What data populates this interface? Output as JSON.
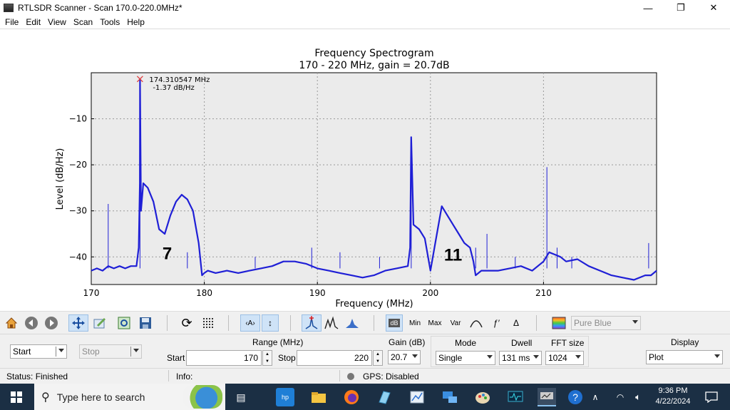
{
  "window": {
    "title": "RTLSDR Scanner - Scan 170.0-220.0MHz*",
    "controls": [
      "—",
      "❐",
      "✕"
    ]
  },
  "menu": [
    "File",
    "Edit",
    "View",
    "Scan",
    "Tools",
    "Help"
  ],
  "chart_data": {
    "type": "line",
    "title": "Frequency Spectrogram",
    "subtitle": "170 - 220 MHz, gain = 20.7dB",
    "xlabel": "Frequency (MHz)",
    "ylabel": "Level (dB/Hz)",
    "xlim": [
      170,
      220
    ],
    "ylim": [
      -46,
      0
    ],
    "xticks": [
      170,
      180,
      190,
      200,
      210
    ],
    "yticks": [
      -10,
      -20,
      -30,
      -40
    ],
    "grid": true,
    "color": "#1f1fd6",
    "series": [
      {
        "x": [
          170,
          170.5,
          171,
          171.5,
          172,
          172.5,
          173,
          173.5,
          174,
          174.2,
          174.3,
          174.31,
          174.4,
          174.6,
          175,
          175.5,
          176,
          176.5,
          177,
          177.5,
          178,
          178.5,
          179,
          179.5,
          179.8,
          180,
          180.3,
          181,
          182,
          183,
          184,
          185,
          186,
          187,
          188,
          189,
          190,
          191,
          192,
          193,
          194,
          195,
          196,
          197,
          198,
          198.2,
          198.3,
          198.5,
          199,
          199.5,
          200,
          200.5,
          201,
          201.5,
          202,
          202.5,
          203,
          203.5,
          203.8,
          204,
          204.5,
          205,
          206,
          207,
          208,
          209,
          210,
          210.5,
          211,
          211.5,
          212,
          213,
          214,
          215,
          216,
          217,
          218,
          219,
          219.5,
          220
        ],
        "y": [
          -43,
          -42.5,
          -43,
          -42,
          -42.5,
          -42,
          -42.5,
          -42,
          -42,
          -38,
          -24,
          -1.37,
          -30,
          -24,
          -25,
          -28,
          -34,
          -35,
          -31,
          -28,
          -26.5,
          -27.5,
          -30,
          -37,
          -44,
          -43.5,
          -43,
          -43.5,
          -43,
          -43.5,
          -43,
          -42.5,
          -42,
          -41,
          -41,
          -41.5,
          -42.5,
          -43,
          -43.5,
          -44,
          -44.5,
          -44,
          -43,
          -42.5,
          -42,
          -38,
          -14,
          -33,
          -34,
          -36,
          -43,
          -36,
          -29,
          -31,
          -33,
          -35,
          -37,
          -38,
          -41,
          -44,
          -43,
          -43,
          -43,
          -42.5,
          -42,
          -43,
          -41,
          -39,
          -39.5,
          -40,
          -41,
          -40.5,
          -42,
          -43,
          -44,
          -44.5,
          -45,
          -44,
          -44,
          -43
        ],
        "spikes": [
          [
            171.5,
            -28.5
          ],
          [
            174.31,
            -1.37
          ],
          [
            178.5,
            -39
          ],
          [
            184.5,
            -40
          ],
          [
            189.5,
            -38
          ],
          [
            192,
            -39
          ],
          [
            195.5,
            -40
          ],
          [
            198.3,
            -14
          ],
          [
            204,
            -38
          ],
          [
            205,
            -35
          ],
          [
            207.5,
            -40
          ],
          [
            210.3,
            -20.5
          ],
          [
            211.2,
            -38
          ],
          [
            212.5,
            -40
          ],
          [
            219.3,
            -37
          ]
        ]
      }
    ],
    "peak_label": {
      "freq": "174.310547 MHz",
      "level": "-1.37 dB/Hz",
      "x": 174.31,
      "y": -1.37
    },
    "annotations": [
      {
        "text": "7",
        "x": 176.3,
        "y": -40.5
      },
      {
        "text": "11",
        "x": 201.2,
        "y": -40.8
      }
    ]
  },
  "toolbar": {
    "color_map": "Pure Blue",
    "buttons": [
      "home-icon",
      "back-icon",
      "forward-icon",
      "pan-icon",
      "configure-icon",
      "zoom-fit-icon",
      "save-icon",
      "refresh-icon",
      "grid-icon",
      "fit-x-icon",
      "fit-y-icon",
      "peak-icon",
      "peaks-icon",
      "fill-icon"
    ],
    "db_label": "dB",
    "min_label": "Min",
    "max_label": "Max",
    "var_label": "Var",
    "delta_label": "Δ"
  },
  "controls": {
    "start_btn": "Start",
    "stop_btn": "Stop",
    "range_label": "Range (MHz)",
    "start_label": "Start",
    "start_value": "170",
    "stop_label": "Stop",
    "stop_value": "220",
    "gain_label": "Gain (dB)",
    "gain_value": "20.7",
    "mode_label": "Mode",
    "mode_value": "Single",
    "dwell_label": "Dwell",
    "dwell_value": "131 ms",
    "fft_label": "FFT size",
    "fft_value": "1024",
    "display_label": "Display",
    "display_value": "Plot"
  },
  "status": {
    "status": "Status: Finished",
    "info": "Info:",
    "gps": "GPS: Disabled"
  },
  "taskbar": {
    "search_placeholder": "Type here to search",
    "time": "9:36 PM",
    "date": "4/22/2024"
  }
}
